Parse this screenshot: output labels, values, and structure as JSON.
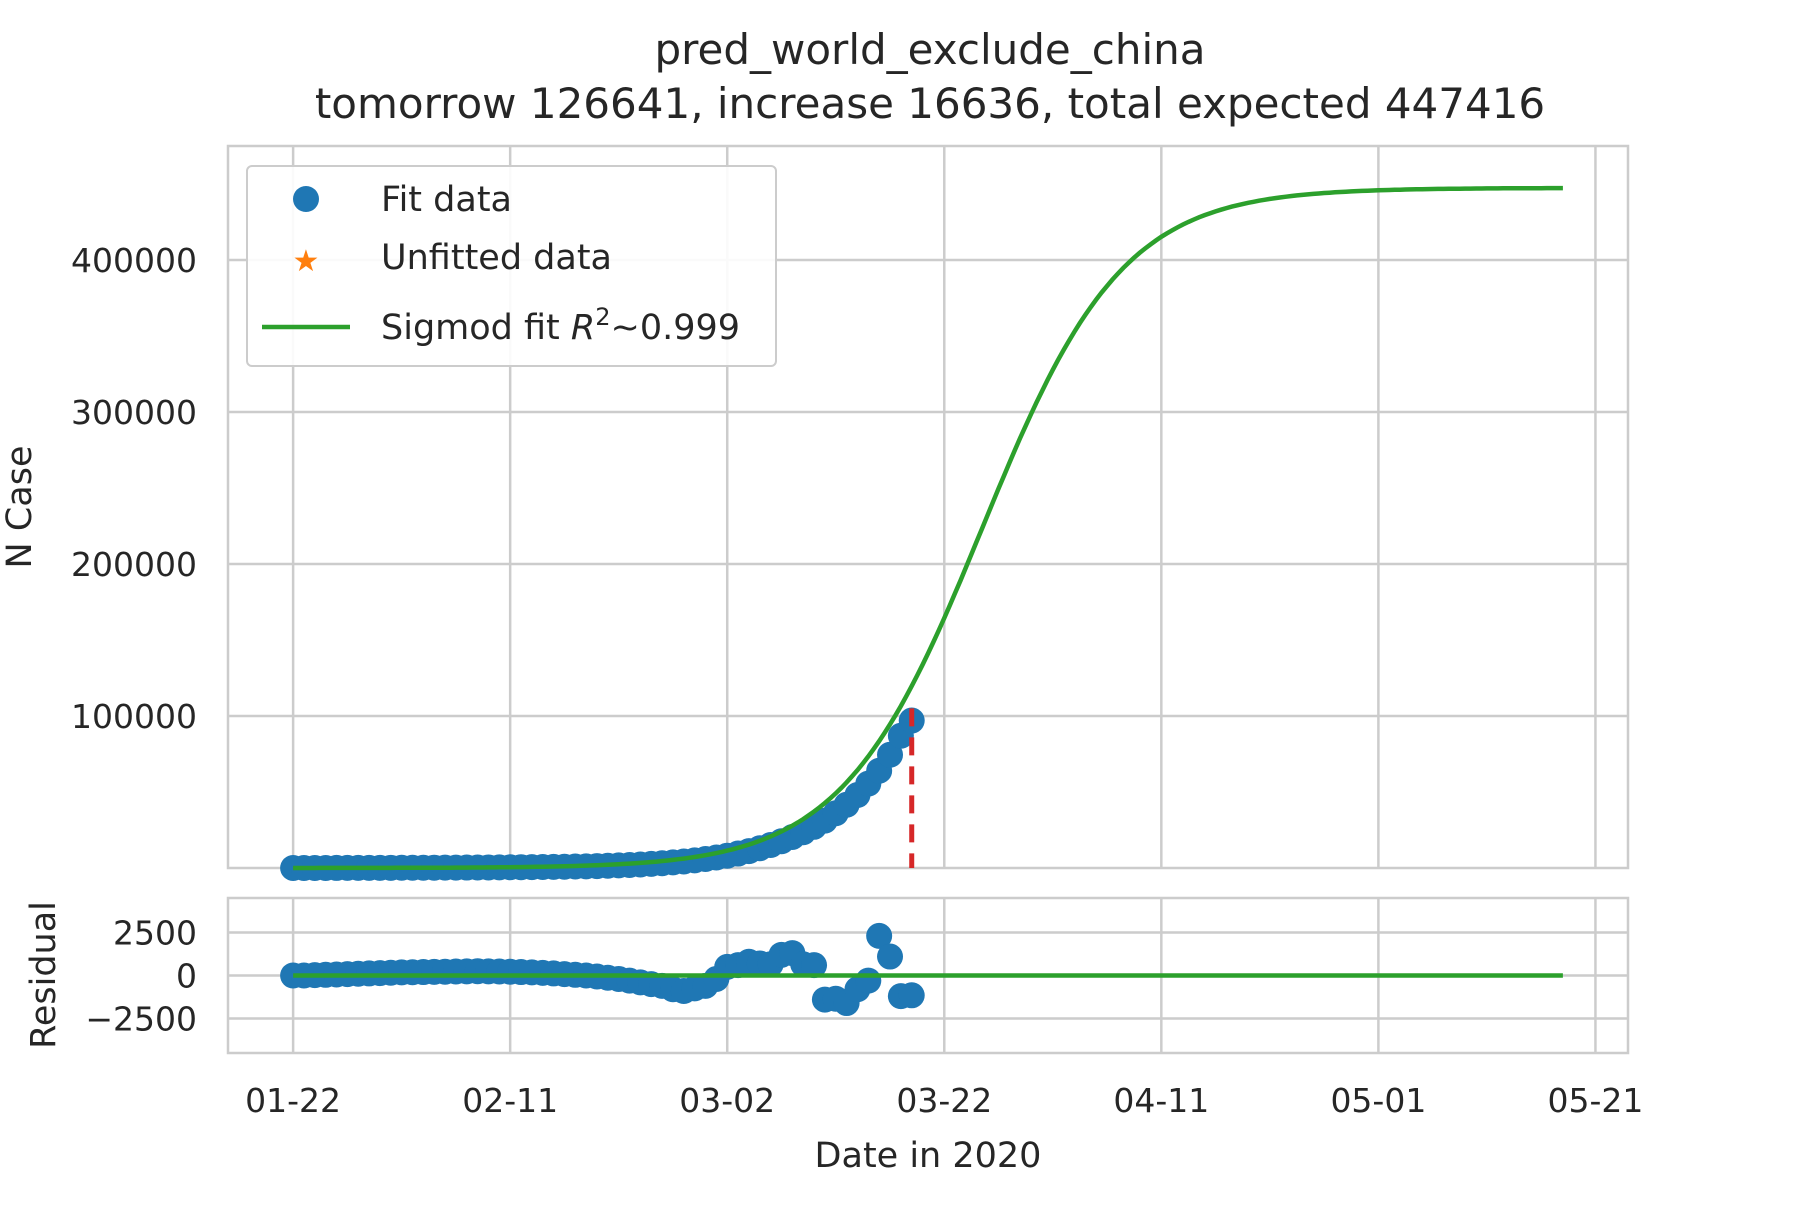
{
  "chart_data": {
    "type": "scatter",
    "title": "pred_world_exclude_china",
    "subtitle": "tomorrow 126641, increase 16636, total expected 447416",
    "xlabel": "Date in 2020",
    "x_tick_labels": [
      "01-22",
      "02-11",
      "03-02",
      "03-22",
      "04-11",
      "05-01",
      "05-21"
    ],
    "x_tick_days": [
      0,
      20,
      40,
      60,
      80,
      100,
      120
    ],
    "grid": true,
    "legend_position": "upper-left",
    "panels": [
      {
        "name": "main",
        "ylabel": "N Case",
        "xlim": [
          -6,
          123
        ],
        "ylim": [
          0,
          475000
        ],
        "y_ticks": [
          100000,
          200000,
          300000,
          400000
        ],
        "y_tick_labels": [
          "100000",
          "200000",
          "300000",
          "400000"
        ],
        "series": [
          {
            "name": "Fit data",
            "kind": "scatter",
            "color": "#1f77b4",
            "x": [
              0,
              1,
              2,
              3,
              4,
              5,
              6,
              7,
              8,
              9,
              10,
              11,
              12,
              13,
              14,
              15,
              16,
              17,
              18,
              19,
              20,
              21,
              22,
              23,
              24,
              25,
              26,
              27,
              28,
              29,
              30,
              31,
              32,
              33,
              34,
              35,
              36,
              37,
              38,
              39,
              40,
              41,
              42,
              43,
              44,
              45,
              46,
              47,
              48,
              49,
              50,
              51,
              52,
              53,
              54,
              55,
              56,
              57
            ],
            "y": [
              10,
              15,
              20,
              30,
              45,
              60,
              75,
              90,
              100,
              120,
              140,
              160,
              180,
              200,
              230,
              260,
              290,
              330,
              370,
              420,
              470,
              530,
              600,
              670,
              750,
              850,
              960,
              1100,
              1270,
              1470,
              1700,
              1980,
              2300,
              2700,
              3150,
              3700,
              4300,
              5000,
              5900,
              6900,
              8100,
              9500,
              11100,
              13000,
              15100,
              17600,
              20400,
              23500,
              27100,
              31200,
              36000,
              41600,
              48000,
              55500,
              64000,
              74500,
              87000,
              97000
            ]
          },
          {
            "name": "Unfitted data",
            "kind": "scatter-star",
            "color": "#ff7f0e",
            "x": [],
            "y": []
          },
          {
            "name": "Sigmod fit",
            "legend_label": "Sigmod fit R²~0.999",
            "kind": "line",
            "color": "#2ca02c",
            "model": "logistic",
            "params": {
              "L": 447416,
              "k": 0.155,
              "x0": 63.5,
              "x_start": 0,
              "x_end": 117
            }
          },
          {
            "name": "current-day marker",
            "kind": "dashed-vline",
            "color": "#d62728",
            "x": 57,
            "y_top": 105000
          }
        ]
      },
      {
        "name": "residual",
        "ylabel": "Residual",
        "xlim": [
          -6,
          123
        ],
        "ylim": [
          -4500,
          4500
        ],
        "y_ticks": [
          -2500,
          0,
          2500
        ],
        "y_tick_labels": [
          "−2500",
          "0",
          "2500"
        ],
        "series": [
          {
            "name": "Residual",
            "kind": "scatter",
            "color": "#1f77b4",
            "x": [
              0,
              1,
              2,
              3,
              4,
              5,
              6,
              7,
              8,
              9,
              10,
              11,
              12,
              13,
              14,
              15,
              16,
              17,
              18,
              19,
              20,
              21,
              22,
              23,
              24,
              25,
              26,
              27,
              28,
              29,
              30,
              31,
              32,
              33,
              34,
              35,
              36,
              37,
              38,
              39,
              40,
              41,
              42,
              43,
              44,
              45,
              46,
              47,
              48,
              49,
              50,
              51,
              52,
              53,
              54,
              55,
              56,
              57
            ],
            "y": [
              0,
              0,
              20,
              40,
              60,
              80,
              100,
              120,
              140,
              160,
              180,
              190,
              200,
              210,
              220,
              230,
              240,
              250,
              240,
              230,
              220,
              200,
              180,
              150,
              120,
              80,
              40,
              0,
              -60,
              -130,
              -200,
              -300,
              -400,
              -500,
              -600,
              -800,
              -900,
              -750,
              -600,
              -200,
              500,
              600,
              800,
              700,
              650,
              1200,
              1300,
              650,
              600,
              -1400,
              -1350,
              -1600,
              -800,
              -300,
              2300,
              1100,
              -1200,
              -1150
            ]
          },
          {
            "name": "zero-line",
            "kind": "line",
            "color": "#2ca02c",
            "x": [
              0,
              117
            ],
            "y": [
              0,
              0
            ]
          }
        ]
      }
    ]
  }
}
